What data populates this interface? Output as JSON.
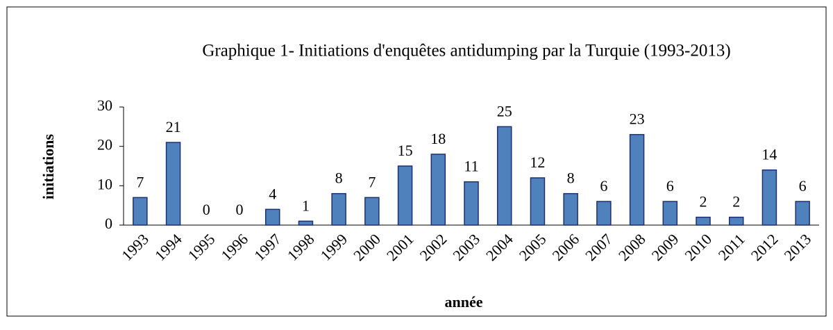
{
  "chart_data": {
    "type": "bar",
    "title": "Graphique 1- Initiations d'enquêtes antidumping par la Turquie (1993-2013)",
    "x_label": "année",
    "y_label": "initiations",
    "categories": [
      "1993",
      "1994",
      "1995",
      "1996",
      "1997",
      "1998",
      "1999",
      "2000",
      "2001",
      "2002",
      "2003",
      "2004",
      "2005",
      "2006",
      "2007",
      "2008",
      "2009",
      "2010",
      "2011",
      "2012",
      "2013"
    ],
    "values": [
      7,
      21,
      0,
      0,
      4,
      1,
      8,
      7,
      15,
      18,
      11,
      25,
      12,
      8,
      6,
      23,
      6,
      2,
      2,
      14,
      6
    ],
    "color": "#4f81bd",
    "ylim": [
      0,
      30
    ],
    "yticks": [
      0,
      10,
      20,
      30
    ],
    "grid": false
  }
}
